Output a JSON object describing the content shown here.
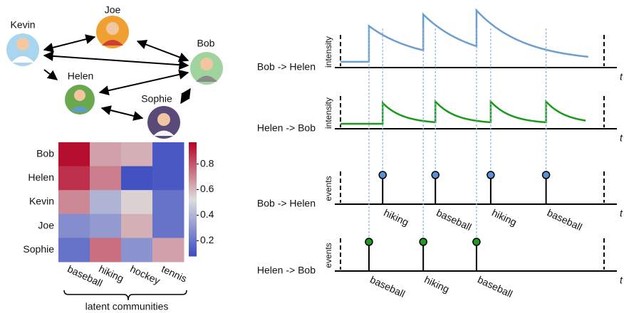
{
  "graph": {
    "nodes": [
      {
        "label": "Kevin"
      },
      {
        "label": "Joe"
      },
      {
        "label": "Bob"
      },
      {
        "label": "Helen"
      },
      {
        "label": "Sophie"
      }
    ]
  },
  "heatmap": {
    "rows": [
      "Bob",
      "Helen",
      "Kevin",
      "Joe",
      "Sophie"
    ],
    "columns": [
      "baseball",
      "hiking",
      "hockey",
      "tennis"
    ],
    "values": [
      [
        0.95,
        0.65,
        0.62,
        0.12
      ],
      [
        0.88,
        0.72,
        0.1,
        0.12
      ],
      [
        0.7,
        0.4,
        0.55,
        0.2
      ],
      [
        0.28,
        0.32,
        0.62,
        0.2
      ],
      [
        0.2,
        0.75,
        0.3,
        0.65
      ]
    ],
    "colorbar_lim": [
      0.08,
      0.97
    ],
    "colorbar_ticks": [
      0.2,
      0.4,
      0.6,
      0.8
    ],
    "caption": "latent communities"
  },
  "timelines": {
    "x_label": "t",
    "xlim": [
      0,
      10
    ],
    "panels": [
      {
        "label": "Bob -> Helen",
        "y_label": "intensity",
        "kind": "intensity",
        "color": "#6a9fd0",
        "ylim": [
          0,
          1.2
        ],
        "baseline": 0.15,
        "jump": 0.93,
        "decay": 0.55,
        "end": 9.4,
        "events": [
          1.08,
          3.14,
          5.16
        ]
      },
      {
        "label": "Helen -> Bob",
        "y_label": "intensity",
        "kind": "intensity",
        "color": "#1a9a1a",
        "ylim": [
          0,
          1.2
        ],
        "baseline": 0.13,
        "jump": 0.54,
        "decay": 1.3,
        "end": 9.3,
        "events": [
          1.6,
          3.6,
          5.7,
          7.8
        ]
      },
      {
        "label": "Bob -> Helen",
        "y_label": "events",
        "kind": "events",
        "color": "#5b8fd0",
        "events": [
          1.6,
          3.6,
          5.7,
          7.8
        ],
        "event_labels": [
          "hiking",
          "baseball",
          "hiking",
          "baseball"
        ]
      },
      {
        "label": "Helen -> Bob",
        "y_label": "events",
        "kind": "events",
        "color": "#1f9a1f",
        "events": [
          1.08,
          3.14,
          5.16
        ],
        "event_labels": [
          "baseball",
          "hiking",
          "baseball"
        ]
      }
    ]
  }
}
